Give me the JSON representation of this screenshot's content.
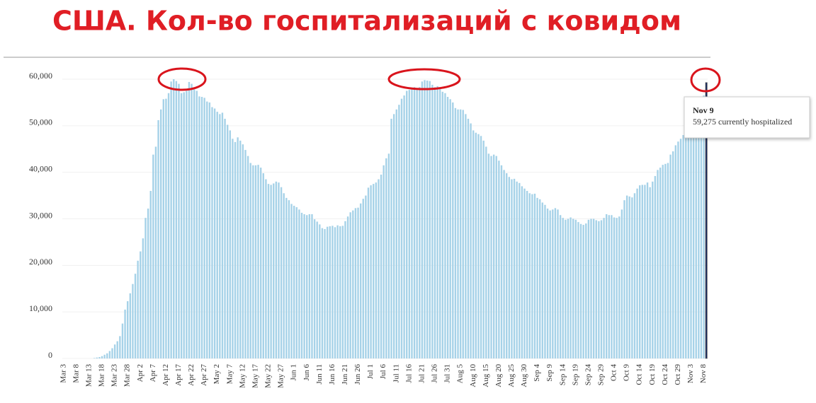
{
  "chart_data": {
    "type": "bar",
    "title": "США. Кол-во госпитализаций с ковидом",
    "categories": [
      "Mar 3",
      null,
      null,
      null,
      null,
      "Mar 8",
      null,
      null,
      null,
      null,
      "Mar 13",
      null,
      null,
      null,
      null,
      "Mar 18",
      null,
      null,
      null,
      null,
      "Mar 23",
      null,
      null,
      null,
      null,
      "Mar 28",
      null,
      null,
      null,
      null,
      "Apr 2",
      null,
      null,
      null,
      null,
      "Apr 7",
      null,
      null,
      null,
      null,
      "Apr 12",
      null,
      null,
      null,
      null,
      "Apr 17",
      null,
      null,
      null,
      null,
      "Apr 22",
      null,
      null,
      null,
      null,
      "Apr 27",
      null,
      null,
      null,
      null,
      "May 2",
      null,
      null,
      null,
      null,
      "May 7",
      null,
      null,
      null,
      null,
      "May 12",
      null,
      null,
      null,
      null,
      "May 17",
      null,
      null,
      null,
      null,
      "May 22",
      null,
      null,
      null,
      null,
      "May 27",
      null,
      null,
      null,
      null,
      "Jun 1",
      null,
      null,
      null,
      null,
      "Jun 6",
      null,
      null,
      null,
      null,
      "Jun 11",
      null,
      null,
      null,
      null,
      "Jun 16",
      null,
      null,
      null,
      null,
      "Jun 21",
      null,
      null,
      null,
      null,
      "Jun 26",
      null,
      null,
      null,
      null,
      "Jul 1",
      null,
      null,
      null,
      null,
      "Jul 6",
      null,
      null,
      null,
      null,
      "Jul 11",
      null,
      null,
      null,
      null,
      "Jul 16",
      null,
      null,
      null,
      null,
      "Jul 21",
      null,
      null,
      null,
      null,
      "Jul 26",
      null,
      null,
      null,
      null,
      "Jul 31",
      null,
      null,
      null,
      null,
      "Aug 5",
      null,
      null,
      null,
      null,
      "Aug 10",
      null,
      null,
      null,
      null,
      "Aug 15",
      null,
      null,
      null,
      null,
      "Aug 20",
      null,
      null,
      null,
      null,
      "Aug 25",
      null,
      null,
      null,
      null,
      "Aug 30",
      null,
      null,
      null,
      null,
      "Sep 4",
      null,
      null,
      null,
      null,
      "Sep 9",
      null,
      null,
      null,
      null,
      "Sep 14",
      null,
      null,
      null,
      null,
      "Sep 19",
      null,
      null,
      null,
      null,
      "Sep 24",
      null,
      null,
      null,
      null,
      "Sep 29",
      null,
      null,
      null,
      null,
      "Oct 4",
      null,
      null,
      null,
      null,
      "Oct 9",
      null,
      null,
      null,
      null,
      "Oct 14",
      null,
      null,
      null,
      null,
      "Oct 19",
      null,
      null,
      null,
      null,
      "Oct 24",
      null,
      null,
      null,
      null,
      "Oct 29",
      null,
      null,
      null,
      null,
      "Nov 3",
      null,
      null,
      null,
      null,
      "Nov 8",
      null
    ],
    "values": [
      0,
      0,
      0,
      0,
      0,
      0,
      0,
      0,
      0,
      0,
      0,
      0,
      100,
      200,
      300,
      500,
      800,
      1100,
      1600,
      2200,
      3000,
      3700,
      4800,
      7500,
      10500,
      12300,
      14000,
      16000,
      18200,
      21000,
      23000,
      25800,
      30200,
      32200,
      36000,
      43800,
      45500,
      51200,
      53500,
      55700,
      55800,
      57000,
      59500,
      60000,
      59600,
      59000,
      57000,
      57200,
      57500,
      59400,
      59000,
      57800,
      57500,
      56300,
      56200,
      56000,
      55200,
      55000,
      54000,
      53700,
      53000,
      52500,
      52800,
      51500,
      50200,
      49000,
      47200,
      46500,
      47500,
      46800,
      46000,
      44800,
      43500,
      42000,
      41500,
      41500,
      41600,
      41000,
      39800,
      38500,
      37500,
      37300,
      37600,
      38000,
      37800,
      36800,
      35500,
      34500,
      34000,
      33200,
      32800,
      32500,
      32000,
      31300,
      31000,
      30800,
      31000,
      31000,
      29900,
      29400,
      28800,
      28000,
      27800,
      28300,
      28400,
      28500,
      28200,
      28600,
      28400,
      28500,
      29500,
      30500,
      31400,
      31800,
      32300,
      32400,
      33300,
      34300,
      35000,
      36700,
      37200,
      37500,
      37800,
      38500,
      39500,
      41500,
      43000,
      44000,
      51500,
      52500,
      53500,
      54500,
      55800,
      56500,
      57500,
      57700,
      58000,
      58300,
      58100,
      58300,
      59500,
      59800,
      59700,
      59600,
      58800,
      58300,
      58500,
      58000,
      57300,
      57000,
      56200,
      55700,
      55000,
      53800,
      53500,
      53500,
      53400,
      52500,
      51500,
      50500,
      49000,
      48500,
      48200,
      47800,
      46800,
      45500,
      44000,
      43500,
      43800,
      43500,
      42500,
      41500,
      40500,
      39800,
      39000,
      38500,
      38600,
      38000,
      37700,
      37000,
      36500,
      36000,
      35500,
      35300,
      35400,
      34500,
      34200,
      33500,
      33000,
      32200,
      31800,
      32000,
      32300,
      32000,
      30800,
      30200,
      29800,
      30000,
      30300,
      30000,
      29800,
      29300,
      28900,
      28700,
      29000,
      29800,
      30000,
      30000,
      29700,
      29500,
      29700,
      30200,
      31000,
      30800,
      30800,
      30300,
      30200,
      30500,
      32000,
      34000,
      35000,
      34800,
      34600,
      35500,
      36500,
      37200,
      37300,
      37300,
      37800,
      36800,
      38000,
      39200,
      40500,
      41000,
      41600,
      41800,
      42000,
      43800,
      44500,
      45800,
      46600,
      47200,
      48000,
      48500,
      49000,
      49500,
      50000,
      51000,
      52500,
      54500,
      56500,
      59275
    ],
    "color": "#a6d2e8",
    "highlight_color": "#1c2d5e",
    "ylim": [
      0,
      60000
    ],
    "yticks": [
      0,
      {
        "value": 10000,
        "label": "10,000"
      },
      {
        "value": 20000,
        "label": "20,000"
      },
      {
        "value": 30000,
        "label": "30,000"
      },
      {
        "value": 40000,
        "label": "40,000"
      },
      {
        "value": 50000,
        "label": "50,000"
      },
      {
        "value": 60000,
        "label": "60,000"
      }
    ],
    "grid": true,
    "tooltip": {
      "title": "Nov 9",
      "text": "59,275 currently hospitalized"
    }
  }
}
